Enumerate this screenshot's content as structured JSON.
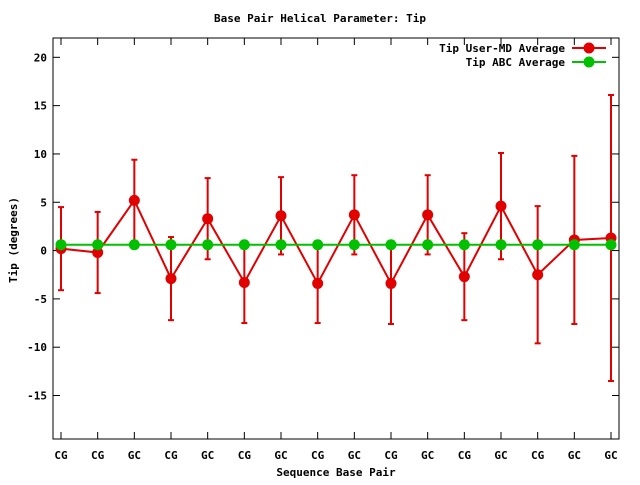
{
  "chart_data": {
    "type": "line",
    "title": "Base Pair Helical Parameter: Tip",
    "xlabel": "Sequence Base Pair",
    "ylabel": "Tip (degrees)",
    "ylim": [
      -19.5,
      22
    ],
    "yticks": [
      -15,
      -10,
      -5,
      0,
      5,
      10,
      15,
      20
    ],
    "categories": [
      "CG",
      "CG",
      "GC",
      "CG",
      "GC",
      "CG",
      "GC",
      "CG",
      "GC",
      "CG",
      "GC",
      "CG",
      "GC",
      "CG",
      "GC",
      "GC"
    ],
    "legend_position": "top-right",
    "series": [
      {
        "name": "Tip User-MD Average",
        "color": "#e00000",
        "values": [
          0.2,
          -0.2,
          5.2,
          -2.9,
          3.3,
          -3.3,
          3.6,
          -3.4,
          3.7,
          -3.4,
          3.7,
          -2.7,
          4.6,
          -2.5,
          1.1,
          1.3
        ],
        "error": [
          4.3,
          4.2,
          4.2,
          4.3,
          4.2,
          4.2,
          4.0,
          4.1,
          4.1,
          4.2,
          4.1,
          4.5,
          5.5,
          7.1,
          8.7,
          14.8
        ]
      },
      {
        "name": "Tip ABC Average",
        "color": "#00c000",
        "values": [
          0.6,
          0.6,
          0.6,
          0.6,
          0.6,
          0.6,
          0.6,
          0.6,
          0.6,
          0.6,
          0.6,
          0.6,
          0.6,
          0.6,
          0.6,
          0.6
        ]
      }
    ]
  }
}
